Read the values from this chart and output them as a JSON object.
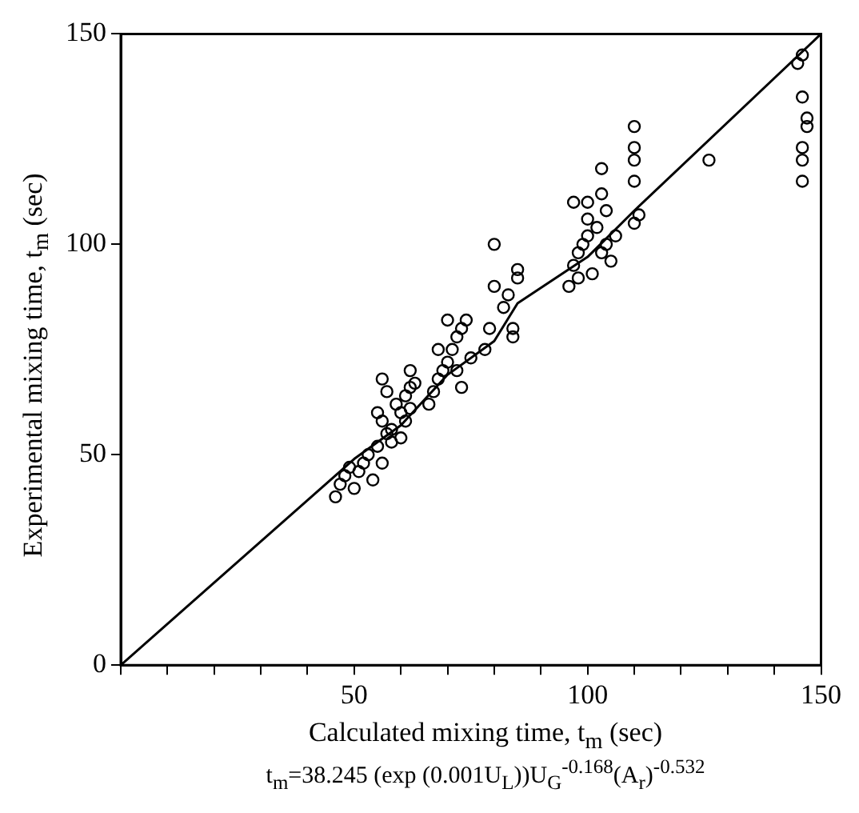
{
  "chart_data": {
    "type": "scatter",
    "xlabel": "Calculated mixing time, t$_{m}$ (sec)",
    "ylabel": "Experimental mixing time, t$_{m}$ (sec)",
    "annotations": [
      "t$_{m}$=38.245 (exp (0.001U$_{L}$))U$_{G}$$^{-0.168}$(A$_{r}$)$^{-0.532}$"
    ],
    "xlim": [
      0,
      150
    ],
    "ylim": [
      0,
      150
    ],
    "xticks": [
      {
        "value": 0,
        "label": null
      },
      {
        "value": 10,
        "label": null
      },
      {
        "value": 20,
        "label": null
      },
      {
        "value": 30,
        "label": null
      },
      {
        "value": 40,
        "label": null
      },
      50,
      {
        "value": 60,
        "label": null
      },
      {
        "value": 70,
        "label": null
      },
      {
        "value": 80,
        "label": null
      },
      {
        "value": 90,
        "label": null
      },
      100,
      {
        "value": 110,
        "label": null
      },
      {
        "value": 120,
        "label": null
      },
      {
        "value": 130,
        "label": null
      },
      {
        "value": 140,
        "label": null
      },
      150
    ],
    "yticks": [
      0,
      50,
      100,
      150
    ],
    "series": [
      {
        "type": "scatter",
        "marker": "circle",
        "color": "#000000",
        "x": [
          46,
          47,
          48,
          49,
          50,
          51,
          52,
          53,
          54,
          55,
          56,
          57,
          55,
          56,
          58,
          59,
          60,
          61,
          62,
          57,
          56,
          58,
          60,
          61,
          62,
          63,
          62,
          66,
          67,
          68,
          69,
          70,
          71,
          72,
          73,
          74,
          70,
          68,
          72,
          75,
          73,
          78,
          79,
          80,
          80,
          82,
          83,
          84,
          85,
          85,
          84,
          96,
          97,
          98,
          99,
          100,
          101,
          100,
          102,
          103,
          104,
          98,
          97,
          100,
          103,
          103,
          105,
          104,
          106,
          110,
          111,
          110,
          110,
          110,
          110,
          126,
          146,
          146,
          146,
          147,
          147,
          146,
          146,
          145
        ],
        "values": [
          40,
          43,
          45,
          47,
          42,
          46,
          48,
          50,
          44,
          52,
          48,
          55,
          60,
          58,
          56,
          62,
          60,
          64,
          66,
          65,
          68,
          53,
          54,
          58,
          61,
          67,
          70,
          62,
          65,
          68,
          70,
          72,
          75,
          78,
          80,
          82,
          82,
          75,
          70,
          73,
          66,
          75,
          80,
          90,
          100,
          85,
          88,
          80,
          92,
          94,
          78,
          90,
          95,
          98,
          100,
          102,
          93,
          106,
          104,
          98,
          100,
          92,
          110,
          110,
          112,
          118,
          96,
          108,
          102,
          105,
          107,
          115,
          120,
          123,
          128,
          120,
          115,
          120,
          123,
          128,
          130,
          135,
          145,
          143
        ]
      },
      {
        "type": "line",
        "marker": "none",
        "color": "#000000",
        "x": [
          0,
          50,
          60,
          70,
          80,
          85,
          100,
          110,
          150
        ],
        "values": [
          0,
          49,
          57,
          69,
          77,
          86,
          97,
          108,
          150
        ]
      }
    ]
  }
}
